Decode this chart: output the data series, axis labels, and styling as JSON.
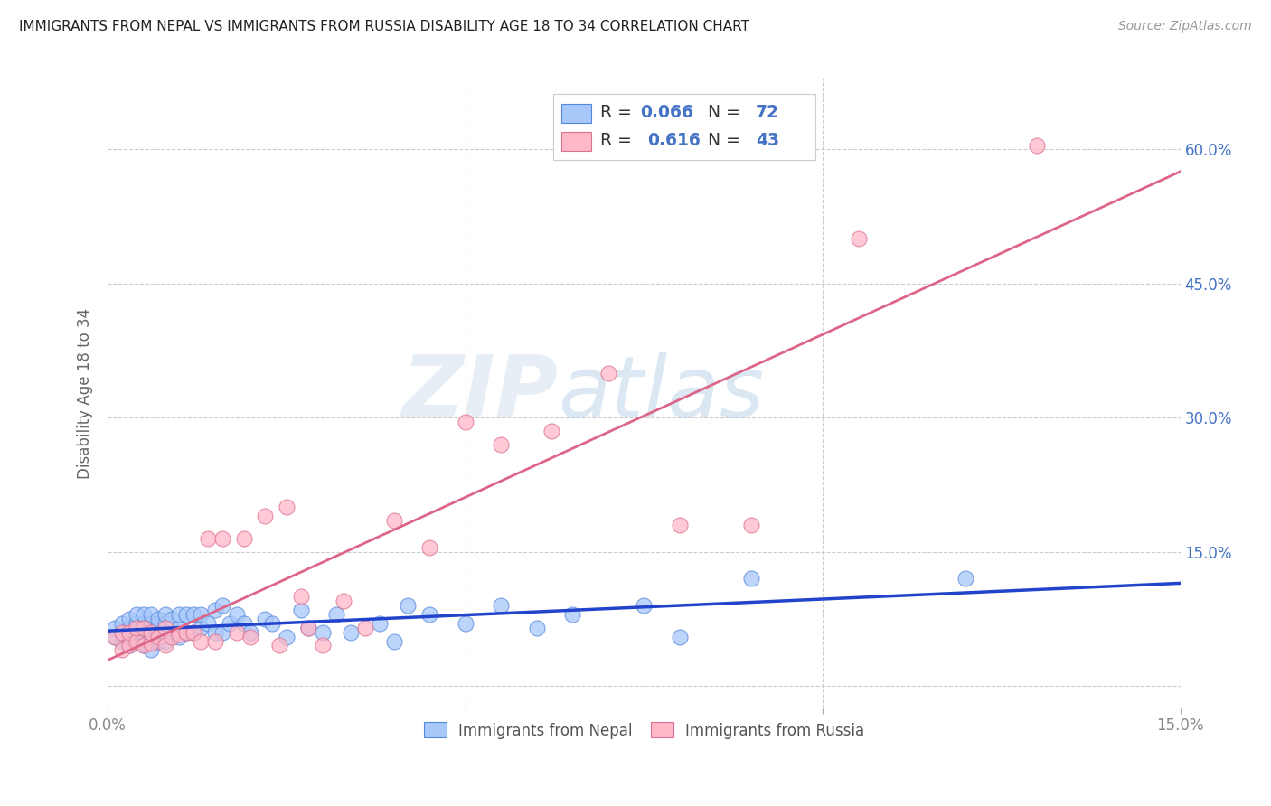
{
  "title": "IMMIGRANTS FROM NEPAL VS IMMIGRANTS FROM RUSSIA DISABILITY AGE 18 TO 34 CORRELATION CHART",
  "source": "Source: ZipAtlas.com",
  "ylabel": "Disability Age 18 to 34",
  "xlim": [
    0.0,
    0.15
  ],
  "ylim": [
    -0.025,
    0.68
  ],
  "nepal_color": "#a8c8fa",
  "nepal_edge": "#5588dd",
  "russia_color": "#ffb8c8",
  "russia_edge": "#dd7090",
  "nepal_line_color": "#2244cc",
  "russia_line_color": "#dd6688",
  "label_color": "#4472c4",
  "tick_color": "#888888",
  "R_nepal": 0.066,
  "N_nepal": 72,
  "R_russia": 0.616,
  "N_russia": 43,
  "legend_nepal": "Immigrants from Nepal",
  "legend_russia": "Immigrants from Russia",
  "watermark_zip": "ZIP",
  "watermark_atlas": "atlas",
  "nepal_x": [
    0.001,
    0.001,
    0.002,
    0.002,
    0.002,
    0.003,
    0.003,
    0.003,
    0.003,
    0.004,
    0.004,
    0.004,
    0.004,
    0.005,
    0.005,
    0.005,
    0.005,
    0.005,
    0.006,
    0.006,
    0.006,
    0.006,
    0.006,
    0.007,
    0.007,
    0.007,
    0.007,
    0.008,
    0.008,
    0.008,
    0.008,
    0.009,
    0.009,
    0.009,
    0.01,
    0.01,
    0.01,
    0.011,
    0.011,
    0.012,
    0.012,
    0.013,
    0.013,
    0.014,
    0.015,
    0.015,
    0.016,
    0.016,
    0.017,
    0.018,
    0.019,
    0.02,
    0.022,
    0.023,
    0.025,
    0.027,
    0.028,
    0.03,
    0.032,
    0.034,
    0.038,
    0.04,
    0.042,
    0.045,
    0.05,
    0.055,
    0.06,
    0.065,
    0.075,
    0.08,
    0.09,
    0.12
  ],
  "nepal_y": [
    0.055,
    0.065,
    0.05,
    0.06,
    0.07,
    0.045,
    0.055,
    0.065,
    0.075,
    0.055,
    0.065,
    0.07,
    0.08,
    0.045,
    0.055,
    0.06,
    0.07,
    0.08,
    0.04,
    0.05,
    0.06,
    0.07,
    0.08,
    0.05,
    0.06,
    0.07,
    0.075,
    0.05,
    0.06,
    0.07,
    0.08,
    0.055,
    0.065,
    0.075,
    0.055,
    0.065,
    0.08,
    0.06,
    0.08,
    0.06,
    0.08,
    0.065,
    0.08,
    0.07,
    0.06,
    0.085,
    0.06,
    0.09,
    0.07,
    0.08,
    0.07,
    0.06,
    0.075,
    0.07,
    0.055,
    0.085,
    0.065,
    0.06,
    0.08,
    0.06,
    0.07,
    0.05,
    0.09,
    0.08,
    0.07,
    0.09,
    0.065,
    0.08,
    0.09,
    0.055,
    0.12,
    0.12
  ],
  "russia_x": [
    0.001,
    0.002,
    0.002,
    0.003,
    0.003,
    0.004,
    0.004,
    0.005,
    0.005,
    0.006,
    0.006,
    0.007,
    0.008,
    0.008,
    0.009,
    0.01,
    0.011,
    0.012,
    0.013,
    0.014,
    0.015,
    0.016,
    0.018,
    0.019,
    0.02,
    0.022,
    0.024,
    0.025,
    0.027,
    0.028,
    0.03,
    0.033,
    0.036,
    0.04,
    0.045,
    0.05,
    0.055,
    0.062,
    0.07,
    0.08,
    0.09,
    0.105,
    0.13
  ],
  "russia_y": [
    0.055,
    0.04,
    0.06,
    0.045,
    0.06,
    0.05,
    0.065,
    0.045,
    0.065,
    0.048,
    0.06,
    0.055,
    0.045,
    0.065,
    0.055,
    0.058,
    0.06,
    0.06,
    0.05,
    0.165,
    0.05,
    0.165,
    0.06,
    0.165,
    0.055,
    0.19,
    0.045,
    0.2,
    0.1,
    0.065,
    0.045,
    0.095,
    0.065,
    0.185,
    0.155,
    0.295,
    0.27,
    0.285,
    0.35,
    0.18,
    0.18,
    0.5,
    0.605
  ]
}
